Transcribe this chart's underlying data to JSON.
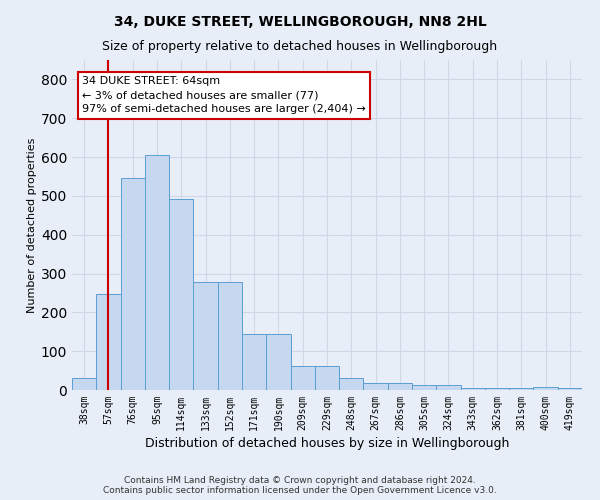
{
  "title": "34, DUKE STREET, WELLINGBOROUGH, NN8 2HL",
  "subtitle": "Size of property relative to detached houses in Wellingborough",
  "xlabel": "Distribution of detached houses by size in Wellingborough",
  "ylabel": "Number of detached properties",
  "footnote": "Contains HM Land Registry data © Crown copyright and database right 2024.\nContains public sector information licensed under the Open Government Licence v3.0.",
  "bar_labels": [
    "38sqm",
    "57sqm",
    "76sqm",
    "95sqm",
    "114sqm",
    "133sqm",
    "152sqm",
    "171sqm",
    "190sqm",
    "209sqm",
    "229sqm",
    "248sqm",
    "267sqm",
    "286sqm",
    "305sqm",
    "324sqm",
    "343sqm",
    "362sqm",
    "381sqm",
    "400sqm",
    "419sqm"
  ],
  "bar_values": [
    30,
    247,
    547,
    605,
    493,
    278,
    278,
    145,
    145,
    62,
    62,
    30,
    17,
    17,
    12,
    12,
    5,
    5,
    5,
    8,
    5
  ],
  "bar_color": "#c5d8f0",
  "bar_edge_color": "#5a9fd4",
  "annotation_line1": "34 DUKE STREET: 64sqm",
  "annotation_line2": "← 3% of detached houses are smaller (77)",
  "annotation_line3": "97% of semi-detached houses are larger (2,404) →",
  "vline_x": 1.0,
  "ylim": [
    0,
    850
  ],
  "yticks": [
    0,
    100,
    200,
    300,
    400,
    500,
    600,
    700,
    800
  ],
  "bg_color": "#e8eef8",
  "grid_color": "#d0d8e8",
  "title_fontsize": 10,
  "subtitle_fontsize": 9,
  "ylabel_fontsize": 8,
  "xlabel_fontsize": 9,
  "annot_box_fc": "#ffffff",
  "annot_box_ec": "#cc0000",
  "vline_color": "#cc0000",
  "footnote_fontsize": 6.5
}
